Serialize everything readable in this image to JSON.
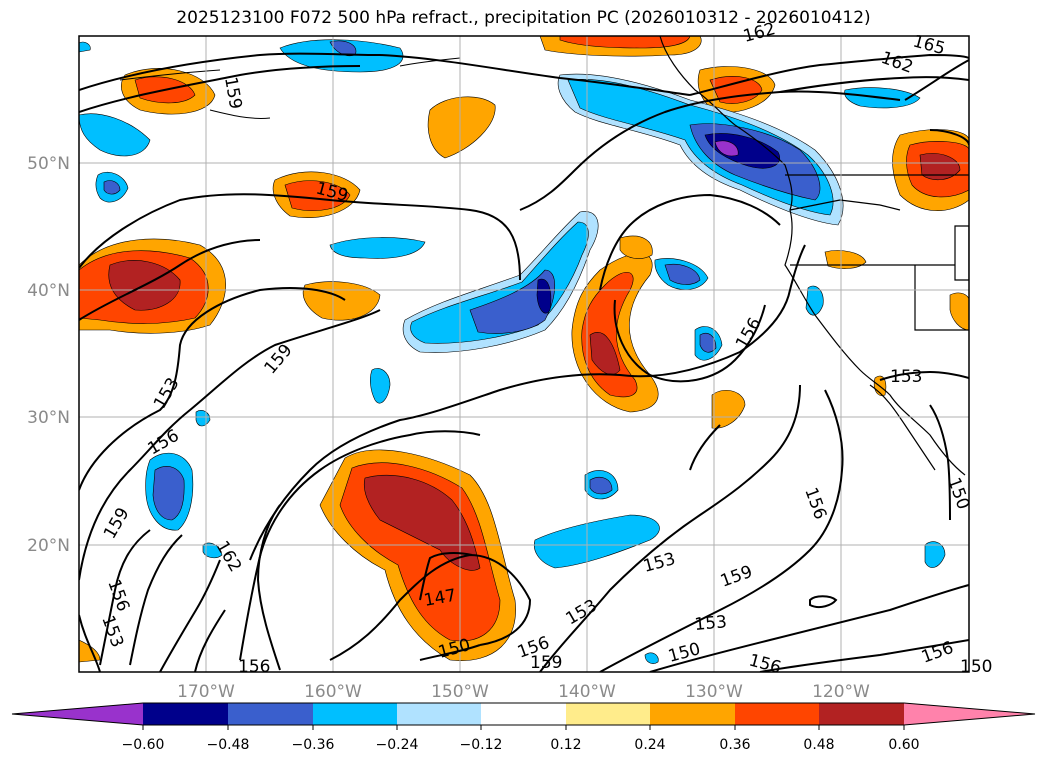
{
  "title": "2025123100 F072 500 hPa refract., precipitation PC (2026010312 - 2026010412)",
  "map": {
    "lat_labels": [
      "50°N",
      "40°N",
      "30°N",
      "20°N"
    ],
    "lon_labels": [
      "170°W",
      "160°W",
      "150°W",
      "140°W",
      "130°W",
      "120°W"
    ],
    "contour_labels": [
      "159",
      "159",
      "159",
      "153",
      "156",
      "159",
      "162",
      "156",
      "153",
      "156",
      "147",
      "150",
      "156",
      "159",
      "153",
      "150",
      "156",
      "153",
      "159",
      "153",
      "156",
      "162",
      "165",
      "162",
      "156",
      "153",
      "150",
      "156",
      "150"
    ]
  },
  "colorbar": {
    "ticks": [
      "−0.60",
      "−0.48",
      "−0.36",
      "−0.24",
      "−0.12",
      "0.12",
      "0.24",
      "0.36",
      "0.48",
      "0.60"
    ],
    "colors": [
      "#9932cc",
      "#00008b",
      "#3a5fcd",
      "#00bfff",
      "#b0e2ff",
      "#ffffff",
      "#ffec8b",
      "#ffa500",
      "#ff4500",
      "#b22222",
      "#ff82ab"
    ]
  }
}
